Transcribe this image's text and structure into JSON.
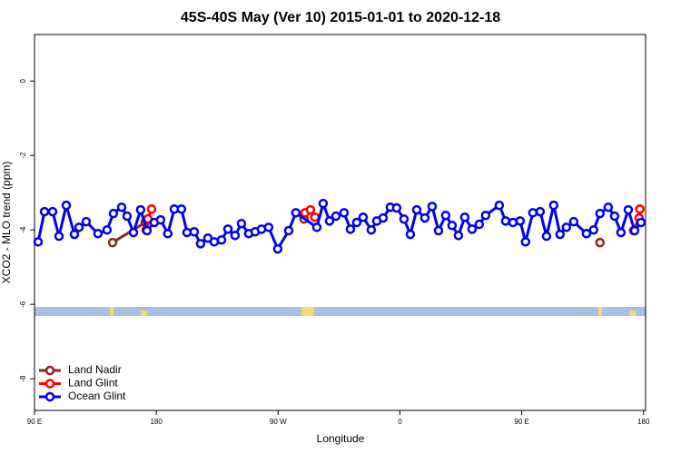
{
  "chart_data": {
    "type": "line",
    "title": "45S-40S May (Ver 10)   2015-01-01 to 2020-12-18",
    "xlabel": "Longitude",
    "ylabel": "XCO2 - MLO trend (ppm)",
    "xlim": [
      90,
      541.5
    ],
    "ylim": [
      -8.85,
      1.25
    ],
    "xticks": [
      {
        "value": 90,
        "label": "90 E"
      },
      {
        "value": 180,
        "label": "180"
      },
      {
        "value": 270,
        "label": "90 W"
      },
      {
        "value": 360,
        "label": "0"
      },
      {
        "value": 450,
        "label": "90 E"
      },
      {
        "value": 540,
        "label": "180"
      }
    ],
    "yticks": [
      0,
      -2,
      -4,
      -6,
      -8
    ],
    "legend": "bottom-left",
    "series": [
      {
        "name": "Land Nadir",
        "color": "#8b2323",
        "x": [
          147.7,
          171.8,
          null,
          289.2,
          null,
          507.8
        ],
        "values": [
          -4.34,
          -3.8,
          null,
          -3.71,
          null,
          -4.34
        ]
      },
      {
        "name": "Land Glint",
        "color": "#ff0000",
        "x": [
          172.5,
          173.8,
          176.5,
          null,
          289.8,
          293.9,
          297.2,
          null,
          532.6,
          536.7,
          537.3
        ],
        "values": [
          -4.0,
          -3.7,
          -3.44,
          null,
          -3.54,
          -3.46,
          -3.66,
          null,
          -4.02,
          -3.68,
          -3.44
        ]
      },
      {
        "name": "Ocean Glint",
        "color": "#0000ee",
        "x": [
          92.7,
          97.4,
          103.4,
          108.1,
          113.5,
          119.5,
          122.9,
          128.2,
          136.9,
          143.6,
          148.3,
          154.4,
          158.4,
          163.1,
          168.4,
          173.1,
          178.5,
          183.2,
          188.5,
          193.3,
          198.6,
          202.7,
          208.0,
          212.7,
          218.1,
          222.8,
          228.2,
          232.9,
          238.2,
          242.9,
          248.3,
          253.0,
          257.7,
          263.0,
          269.7,
          277.8,
          283.1,
          298.6,
          303.3,
          308.0,
          312.7,
          318.7,
          323.4,
          328.1,
          332.8,
          338.8,
          342.9,
          347.6,
          352.9,
          357.6,
          363.0,
          367.7,
          372.4,
          378.4,
          383.8,
          388.5,
          393.8,
          398.5,
          403.2,
          407.9,
          413.3,
          418.6,
          423.3,
          433.4,
          438.1,
          443.5,
          448.8,
          452.8,
          458.2,
          463.6,
          468.3,
          473.6,
          478.3,
          483.0,
          488.4,
          497.8,
          503.1,
          507.8,
          513.9,
          518.6,
          523.3,
          528.7,
          533.4,
          538.1
        ],
        "values": [
          -4.32,
          -3.51,
          -3.51,
          -4.17,
          -3.34,
          -4.12,
          -3.93,
          -3.78,
          -4.1,
          -4.0,
          -3.56,
          -3.39,
          -3.63,
          -4.07,
          -3.46,
          -4.02,
          -3.8,
          -3.73,
          -4.1,
          -3.44,
          -3.44,
          -4.07,
          -4.05,
          -4.37,
          -4.22,
          -4.32,
          -4.27,
          -3.98,
          -4.15,
          -3.83,
          -4.1,
          -4.05,
          -3.98,
          -3.93,
          -4.51,
          -4.02,
          -3.54,
          -3.93,
          -3.29,
          -3.76,
          -3.63,
          -3.54,
          -3.98,
          -3.8,
          -3.66,
          -4.0,
          -3.76,
          -3.68,
          -3.39,
          -3.41,
          -3.71,
          -4.12,
          -3.46,
          -3.68,
          -3.37,
          -4.02,
          -3.61,
          -3.88,
          -4.15,
          -3.66,
          -3.98,
          -3.85,
          -3.61,
          -3.34,
          -3.76,
          -3.8,
          -3.76,
          -4.32,
          -3.54,
          -3.51,
          -4.17,
          -3.34,
          -4.12,
          -3.93,
          -3.78,
          -4.1,
          -4.0,
          -3.56,
          -3.39,
          -3.63,
          -4.07,
          -3.46,
          -4.02,
          -3.8
        ]
      }
    ]
  }
}
